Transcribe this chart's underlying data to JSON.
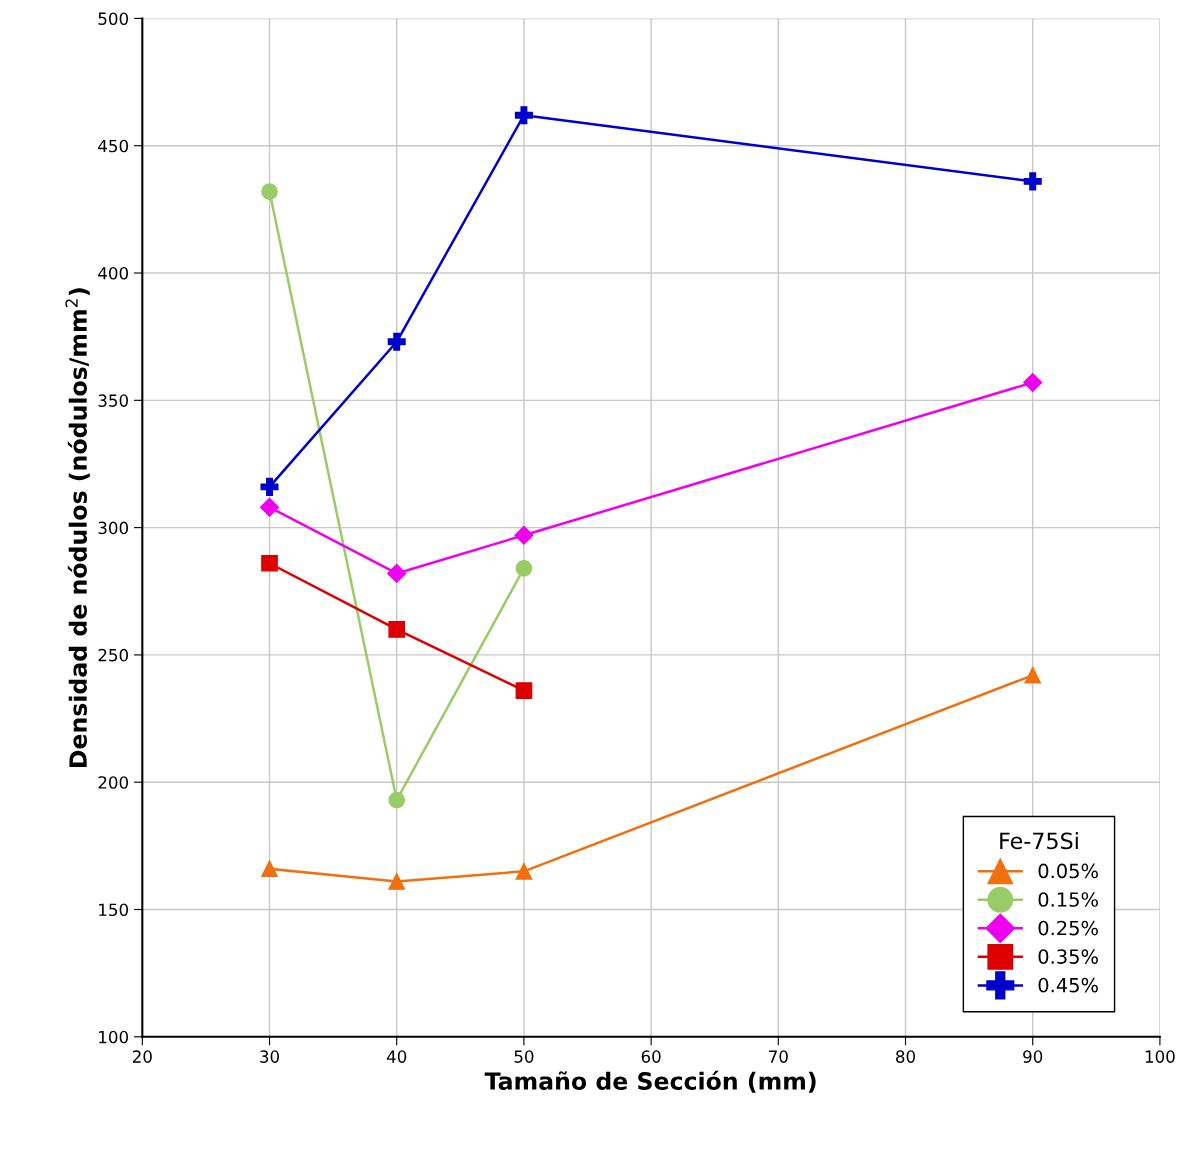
{
  "chart_data": {
    "type": "line",
    "xlabel": "Tamaño de Sección (mm)",
    "ylabel": "Densidad de nódulos (nódulos/mm$^{2}$)",
    "legend_title": "Fe-75Si",
    "legend": "bottom right",
    "grid": true,
    "line_style": "solid",
    "xlim": [
      20,
      100
    ],
    "xticks": [
      20,
      30,
      40,
      50,
      60,
      70,
      80,
      90,
      100
    ],
    "ylim": [
      100,
      500
    ],
    "yticks": [
      100,
      150,
      200,
      250,
      300,
      350,
      400,
      450,
      500
    ],
    "series": [
      {
        "name": "0.05%",
        "color": "#f07010",
        "marker": "triangle",
        "x": [
          30,
          40,
          50,
          90
        ],
        "values": [
          166,
          161,
          165,
          242
        ]
      },
      {
        "name": "0.15%",
        "color": "#99cc66",
        "marker": "circle",
        "x": [
          30,
          40,
          50
        ],
        "values": [
          432,
          193,
          284
        ]
      },
      {
        "name": "0.25%",
        "color": "#ee00ee",
        "marker": "diamond",
        "x": [
          30,
          40,
          50,
          90
        ],
        "values": [
          308,
          282,
          297,
          357
        ]
      },
      {
        "name": "0.35%",
        "color": "#dd0000",
        "marker": "square",
        "x": [
          30,
          40,
          50
        ],
        "values": [
          286,
          260,
          236
        ]
      },
      {
        "name": "0.45%",
        "color": "#0000cc",
        "marker": "cross",
        "x": [
          30,
          40,
          50,
          90
        ],
        "values": [
          316,
          373,
          462,
          436
        ]
      }
    ]
  }
}
